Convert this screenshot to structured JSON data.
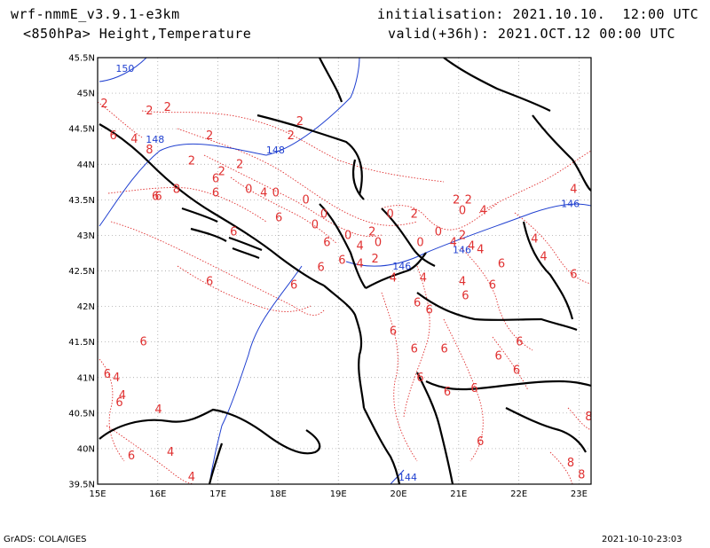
{
  "header": {
    "model": "wrf-nmmE_v3.9.1-e3km",
    "level": "<850hPa> Height,Temperature",
    "initialisation": "initialisation: 2021.10.10.  12:00 UTC",
    "valid": "valid(+36h): 2021.OCT.12 00:00 UTC"
  },
  "footer": {
    "left": "GrADS: COLA/IGES",
    "right": "2021-10-10-23:03"
  },
  "map": {
    "projection": "lat-lon",
    "lon_range": [
      15,
      23.2
    ],
    "lat_range": [
      39.5,
      45.5
    ],
    "lat_ticks": [
      "45.5N",
      "45N",
      "44.5N",
      "44N",
      "43.5N",
      "43N",
      "42.5N",
      "42N",
      "41.5N",
      "41N",
      "40.5N",
      "40N",
      "39.5N"
    ],
    "lon_ticks": [
      "15E",
      "16E",
      "17E",
      "18E",
      "19E",
      "20E",
      "21E",
      "22E",
      "23E"
    ],
    "grid": "dotted",
    "colors": {
      "temperature": "#e03030",
      "height": "#2040d0",
      "coast": "#000000"
    },
    "height_labels": [
      {
        "text": "150",
        "lon": 15.3,
        "lat": 45.3
      },
      {
        "text": "148",
        "lon": 15.8,
        "lat": 44.3
      },
      {
        "text": "148",
        "lon": 17.8,
        "lat": 44.15
      },
      {
        "text": "146",
        "lon": 22.7,
        "lat": 43.4
      },
      {
        "text": "146",
        "lon": 20.9,
        "lat": 42.75
      },
      {
        "text": "146",
        "lon": 19.9,
        "lat": 42.52
      },
      {
        "text": "144",
        "lon": 20.0,
        "lat": 39.55
      }
    ],
    "temperature_labels": [
      {
        "text": "2",
        "lon": 15.05,
        "lat": 44.8
      },
      {
        "text": "2",
        "lon": 15.8,
        "lat": 44.7
      },
      {
        "text": "2",
        "lon": 16.1,
        "lat": 44.75
      },
      {
        "text": "2",
        "lon": 16.8,
        "lat": 44.35
      },
      {
        "text": "2",
        "lon": 18.3,
        "lat": 44.55
      },
      {
        "text": "2",
        "lon": 18.15,
        "lat": 44.35
      },
      {
        "text": "4",
        "lon": 15.55,
        "lat": 44.3
      },
      {
        "text": "6",
        "lon": 15.2,
        "lat": 44.35
      },
      {
        "text": "8",
        "lon": 15.8,
        "lat": 44.15
      },
      {
        "text": "2",
        "lon": 16.5,
        "lat": 44.0
      },
      {
        "text": "2",
        "lon": 17.0,
        "lat": 43.85
      },
      {
        "text": "2",
        "lon": 17.3,
        "lat": 43.95
      },
      {
        "text": "6",
        "lon": 16.9,
        "lat": 43.75
      },
      {
        "text": "8",
        "lon": 16.25,
        "lat": 43.6
      },
      {
        "text": "6",
        "lon": 15.95,
        "lat": 43.5
      },
      {
        "text": "6",
        "lon": 16.9,
        "lat": 43.55
      },
      {
        "text": "0",
        "lon": 17.45,
        "lat": 43.6
      },
      {
        "text": "4",
        "lon": 17.7,
        "lat": 43.55
      },
      {
        "text": "0",
        "lon": 17.9,
        "lat": 43.55
      },
      {
        "text": "0",
        "lon": 18.4,
        "lat": 43.45
      },
      {
        "text": "0",
        "lon": 18.7,
        "lat": 43.25
      },
      {
        "text": "6",
        "lon": 17.95,
        "lat": 43.2
      },
      {
        "text": "6",
        "lon": 17.2,
        "lat": 43.0
      },
      {
        "text": "0",
        "lon": 18.55,
        "lat": 43.1
      },
      {
        "text": "6",
        "lon": 18.75,
        "lat": 42.85
      },
      {
        "text": "0",
        "lon": 19.1,
        "lat": 42.95
      },
      {
        "text": "4",
        "lon": 19.3,
        "lat": 42.8
      },
      {
        "text": "0",
        "lon": 19.6,
        "lat": 42.85
      },
      {
        "text": "2",
        "lon": 19.5,
        "lat": 43.0
      },
      {
        "text": "6",
        "lon": 19.0,
        "lat": 42.6
      },
      {
        "text": "4",
        "lon": 19.3,
        "lat": 42.55
      },
      {
        "text": "2",
        "lon": 19.55,
        "lat": 42.62
      },
      {
        "text": "6",
        "lon": 18.65,
        "lat": 42.5
      },
      {
        "text": "0",
        "lon": 19.8,
        "lat": 43.25
      },
      {
        "text": "2",
        "lon": 20.2,
        "lat": 43.25
      },
      {
        "text": "0",
        "lon": 20.3,
        "lat": 42.85
      },
      {
        "text": "0",
        "lon": 20.6,
        "lat": 43.0
      },
      {
        "text": "2",
        "lon": 20.9,
        "lat": 43.45
      },
      {
        "text": "0",
        "lon": 21.0,
        "lat": 43.3
      },
      {
        "text": "2",
        "lon": 21.1,
        "lat": 43.45
      },
      {
        "text": "4",
        "lon": 21.35,
        "lat": 43.3
      },
      {
        "text": "4",
        "lon": 20.85,
        "lat": 42.85
      },
      {
        "text": "2",
        "lon": 21.0,
        "lat": 42.95
      },
      {
        "text": "4",
        "lon": 21.15,
        "lat": 42.8
      },
      {
        "text": "4",
        "lon": 21.3,
        "lat": 42.75
      },
      {
        "text": "6",
        "lon": 21.65,
        "lat": 42.55
      },
      {
        "text": "4",
        "lon": 22.2,
        "lat": 42.9
      },
      {
        "text": "4",
        "lon": 22.35,
        "lat": 42.65
      },
      {
        "text": "6",
        "lon": 22.85,
        "lat": 42.4
      },
      {
        "text": "4",
        "lon": 22.85,
        "lat": 43.6
      },
      {
        "text": "4",
        "lon": 19.85,
        "lat": 42.35
      },
      {
        "text": "4",
        "lon": 20.35,
        "lat": 42.35
      },
      {
        "text": "4",
        "lon": 21.0,
        "lat": 42.3
      },
      {
        "text": "6",
        "lon": 21.5,
        "lat": 42.25
      },
      {
        "text": "6",
        "lon": 21.05,
        "lat": 42.1
      },
      {
        "text": "6",
        "lon": 20.25,
        "lat": 42.0
      },
      {
        "text": "6",
        "lon": 20.45,
        "lat": 41.9
      },
      {
        "text": "6",
        "lon": 19.85,
        "lat": 41.6
      },
      {
        "text": "6",
        "lon": 20.2,
        "lat": 41.35
      },
      {
        "text": "6",
        "lon": 20.7,
        "lat": 41.35
      },
      {
        "text": "6",
        "lon": 21.95,
        "lat": 41.45
      },
      {
        "text": "6",
        "lon": 21.6,
        "lat": 41.25
      },
      {
        "text": "6",
        "lon": 21.9,
        "lat": 41.05
      },
      {
        "text": "6",
        "lon": 20.3,
        "lat": 40.95
      },
      {
        "text": "6",
        "lon": 20.75,
        "lat": 40.75
      },
      {
        "text": "6",
        "lon": 21.2,
        "lat": 40.8
      },
      {
        "text": "6",
        "lon": 21.3,
        "lat": 40.05
      },
      {
        "text": "6",
        "lon": 18.2,
        "lat": 42.25
      },
      {
        "text": "6",
        "lon": 15.7,
        "lat": 41.45
      },
      {
        "text": "6",
        "lon": 16.8,
        "lat": 42.3
      },
      {
        "text": "6",
        "lon": 15.9,
        "lat": 43.5
      },
      {
        "text": "6",
        "lon": 15.1,
        "lat": 41.0
      },
      {
        "text": "4",
        "lon": 15.25,
        "lat": 40.95
      },
      {
        "text": "4",
        "lon": 15.35,
        "lat": 40.7
      },
      {
        "text": "6",
        "lon": 15.3,
        "lat": 40.6
      },
      {
        "text": "4",
        "lon": 15.95,
        "lat": 40.5
      },
      {
        "text": "6",
        "lon": 15.5,
        "lat": 39.85
      },
      {
        "text": "4",
        "lon": 16.15,
        "lat": 39.9
      },
      {
        "text": "4",
        "lon": 16.5,
        "lat": 39.55
      },
      {
        "text": "8",
        "lon": 22.8,
        "lat": 39.75
      },
      {
        "text": "8",
        "lon": 22.98,
        "lat": 39.58
      },
      {
        "text": "8",
        "lon": 23.1,
        "lat": 40.4
      }
    ]
  }
}
